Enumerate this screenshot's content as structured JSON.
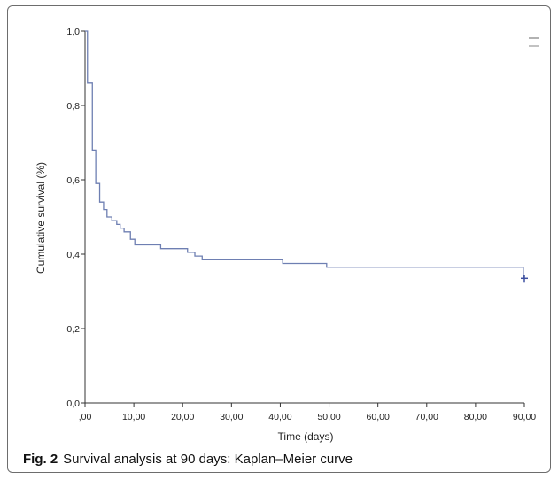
{
  "figure": {
    "caption_label": "Fig. 2",
    "caption_text": "Survival analysis at 90 days: Kaplan–Meier curve"
  },
  "colors": {
    "curve": "#6e7fb2",
    "censor_mark": "#3c4fa0",
    "axis": "#333333",
    "frame": "#6d6d6d"
  },
  "chart_data": {
    "type": "line",
    "subtype": "kaplan-meier step",
    "title": "",
    "xlabel": "Time (days)",
    "ylabel": "Cumulative survival (%)",
    "xlim": [
      0,
      90
    ],
    "ylim": [
      0,
      1
    ],
    "x_ticks": [
      0,
      10,
      20,
      30,
      40,
      50,
      60,
      70,
      80,
      90
    ],
    "x_tick_labels": [
      ",00",
      "10,00",
      "20,00",
      "30,00",
      "40,00",
      "50,00",
      "60,00",
      "70,00",
      "80,00",
      "90,00"
    ],
    "y_ticks": [
      0,
      0.2,
      0.4,
      0.6,
      0.8,
      1.0
    ],
    "y_tick_labels": [
      "0,0",
      "0,2",
      "0,4",
      "0,6",
      "0,8",
      "1,0"
    ],
    "grid": false,
    "legend": "top-right (two short lines, entries unreadable)",
    "series": [
      {
        "steps": [
          {
            "x": 0,
            "y": 1.0
          },
          {
            "x": 0.5,
            "y": 0.86
          },
          {
            "x": 1.5,
            "y": 0.68
          },
          {
            "x": 2.2,
            "y": 0.59
          },
          {
            "x": 3.0,
            "y": 0.54
          },
          {
            "x": 3.8,
            "y": 0.52
          },
          {
            "x": 4.5,
            "y": 0.5
          },
          {
            "x": 5.5,
            "y": 0.49
          },
          {
            "x": 6.5,
            "y": 0.48
          },
          {
            "x": 7.2,
            "y": 0.47
          },
          {
            "x": 8.0,
            "y": 0.46
          },
          {
            "x": 9.3,
            "y": 0.44
          },
          {
            "x": 10.2,
            "y": 0.425
          },
          {
            "x": 15.5,
            "y": 0.415
          },
          {
            "x": 21.0,
            "y": 0.405
          },
          {
            "x": 22.5,
            "y": 0.395
          },
          {
            "x": 24.0,
            "y": 0.385
          },
          {
            "x": 40.5,
            "y": 0.375
          },
          {
            "x": 49.5,
            "y": 0.365
          },
          {
            "x": 89.8,
            "y": 0.335
          }
        ],
        "end_x": 90,
        "censored": [
          {
            "x": 90,
            "y": 0.335
          }
        ]
      }
    ]
  }
}
